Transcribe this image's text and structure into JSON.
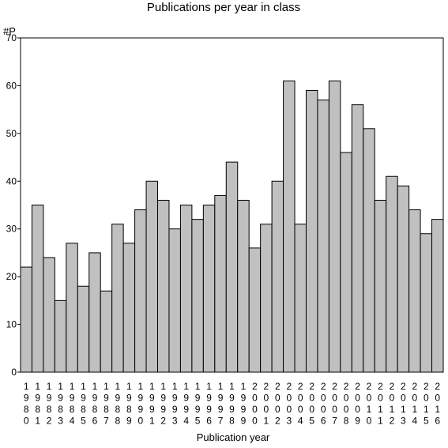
{
  "chart_data": {
    "type": "bar",
    "title": "Publications per year in class",
    "xlabel": "Publication year",
    "ylabel": "#P",
    "ylim": [
      0,
      70
    ],
    "yticks": [
      0,
      10,
      20,
      30,
      40,
      50,
      60,
      70
    ],
    "grid": false,
    "categories": [
      "1980",
      "1981",
      "1982",
      "1983",
      "1984",
      "1985",
      "1986",
      "1987",
      "1988",
      "1989",
      "1990",
      "1991",
      "1992",
      "1993",
      "1994",
      "1995",
      "1996",
      "1997",
      "1998",
      "1999",
      "2000",
      "2001",
      "2002",
      "2003",
      "2004",
      "2005",
      "2006",
      "2007",
      "2008",
      "2009",
      "2010",
      "2011",
      "2012",
      "2013",
      "2014",
      "2015",
      "2016"
    ],
    "values": [
      22,
      35,
      24,
      15,
      27,
      18,
      25,
      17,
      31,
      27,
      34,
      40,
      36,
      30,
      35,
      32,
      35,
      37,
      44,
      36,
      26,
      31,
      40,
      61,
      31,
      59,
      57,
      61,
      46,
      56,
      51,
      36,
      41,
      39,
      34,
      29,
      32
    ],
    "bar_color": "#c0c0c0",
    "bar_edge_color": "#000000"
  }
}
